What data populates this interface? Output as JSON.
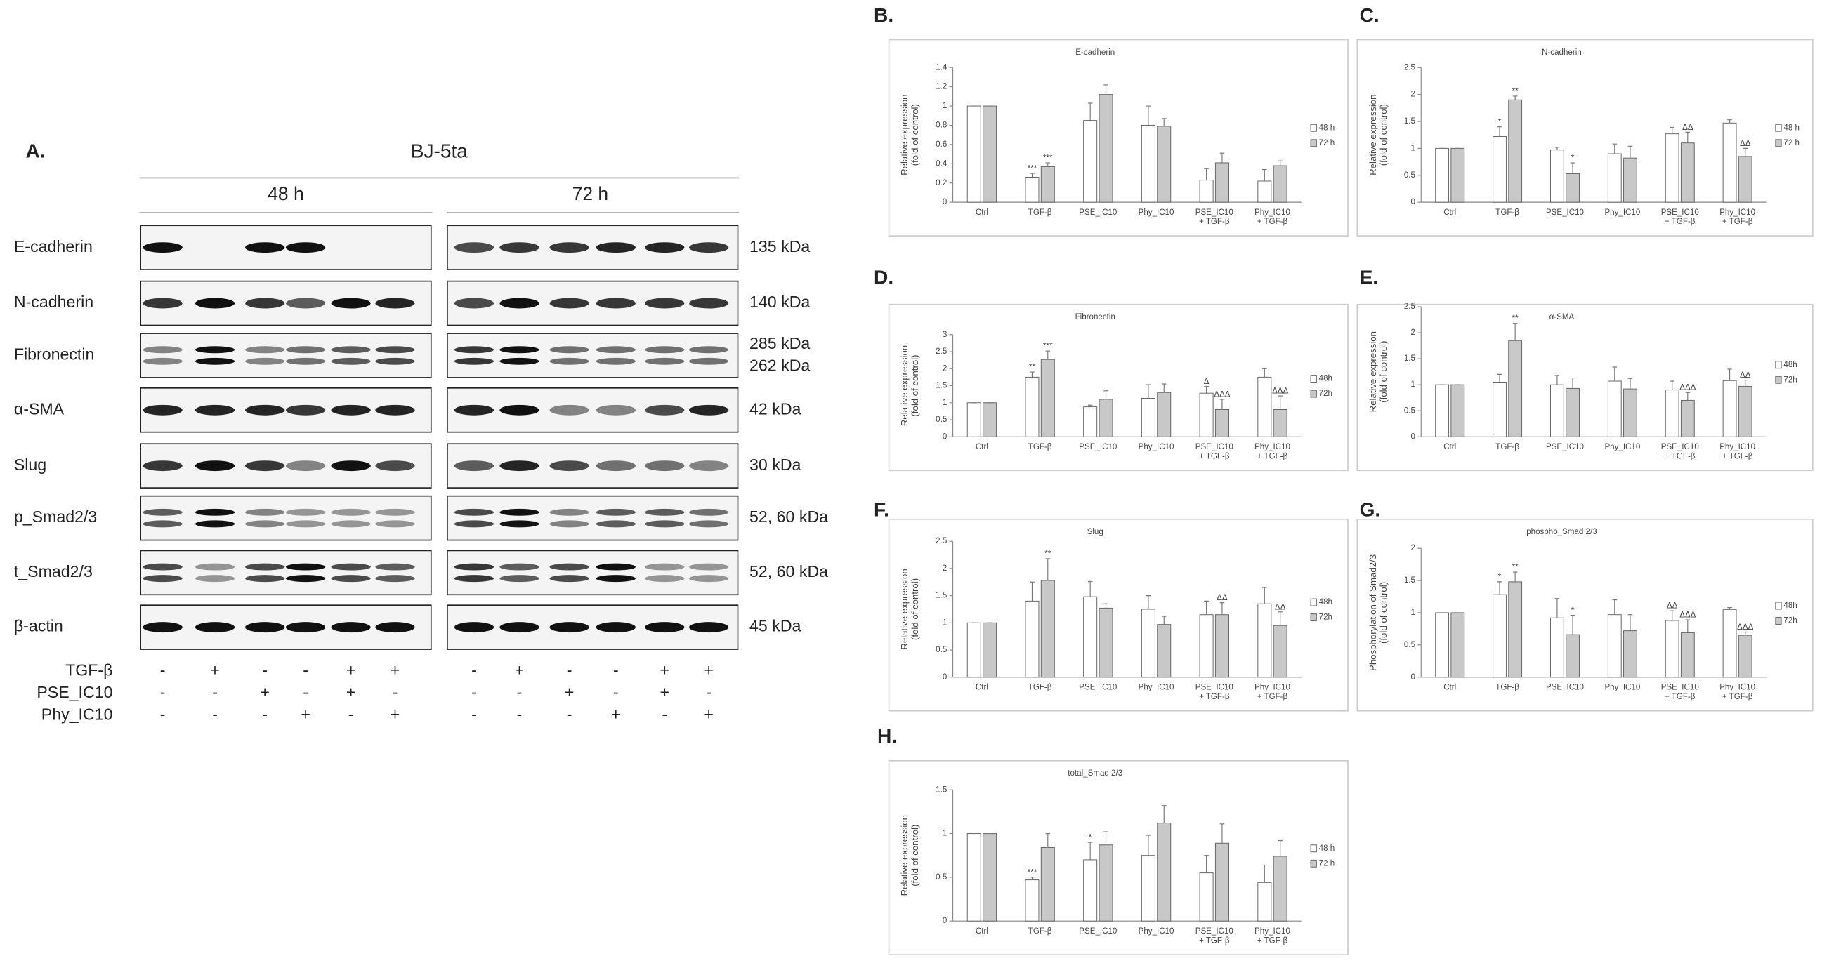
{
  "blot": {
    "panel": "A.",
    "cell_line": "BJ-5ta",
    "timepoints": [
      "48 h",
      "72 h"
    ],
    "rows": [
      {
        "label": "E-cadherin",
        "kda": [
          "135 kDa"
        ]
      },
      {
        "label": "N-cadherin",
        "kda": [
          "140 kDa"
        ]
      },
      {
        "label": "Fibronectin",
        "kda": [
          "285 kDa",
          "262 kDa"
        ]
      },
      {
        "label": "α-SMA",
        "kda": [
          "42 kDa"
        ]
      },
      {
        "label": "Slug",
        "kda": [
          "30 kDa"
        ]
      },
      {
        "label": "p_Smad2/3",
        "kda": [
          "52, 60 kDa"
        ]
      },
      {
        "label": "t_Smad2/3",
        "kda": [
          "52, 60 kDa"
        ]
      },
      {
        "label": "β-actin",
        "kda": [
          "45 kDa"
        ]
      }
    ],
    "treatments": [
      {
        "label": "TGF-β",
        "signs": [
          "-",
          "+",
          "-",
          "-",
          "+",
          "+",
          "-",
          "+",
          "-",
          "-",
          "+",
          "+"
        ]
      },
      {
        "label": "PSE_IC10",
        "signs": [
          "-",
          "-",
          "+",
          "-",
          "+",
          "-",
          "-",
          "-",
          "+",
          "-",
          "+",
          "-"
        ]
      },
      {
        "label": "Phy_IC10",
        "signs": [
          "-",
          "-",
          "-",
          "+",
          "-",
          "+",
          "-",
          "-",
          "-",
          "+",
          "-",
          "+"
        ]
      }
    ]
  },
  "chart_data": [
    {
      "type": "bar",
      "panel": "B.",
      "title": "E-cadherin",
      "ylabel": [
        "Relative expression",
        "(fold of control)"
      ],
      "categories": [
        "Ctrl",
        "TGF-β",
        "PSE_IC10",
        "Phy_IC10",
        "PSE_IC10 + TGF-β",
        "Phy_IC10 + TGF-β"
      ],
      "series": [
        {
          "name": "48 h",
          "color": "#ffffff",
          "values": [
            1,
            0.26,
            0.85,
            0.8,
            0.23,
            0.22
          ],
          "errors": [
            0,
            0.04,
            0.18,
            0.2,
            0.12,
            0.12
          ],
          "marks": [
            null,
            "***",
            null,
            null,
            null,
            null
          ]
        },
        {
          "name": "72 h",
          "color": "#c8c8c8",
          "values": [
            1,
            0.37,
            1.12,
            0.79,
            0.41,
            0.38
          ],
          "errors": [
            0,
            0.04,
            0.1,
            0.08,
            0.1,
            0.05
          ],
          "marks": [
            null,
            "***",
            null,
            null,
            null,
            null
          ]
        }
      ],
      "ylim": [
        0,
        1.4
      ],
      "yticks": [
        0,
        0.2,
        0.4,
        0.6,
        0.8,
        1,
        1.2,
        1.4
      ]
    },
    {
      "type": "bar",
      "panel": "C.",
      "title": "N-cadherin",
      "ylabel": [
        "Relative expression",
        "(fold of control)"
      ],
      "categories": [
        "Ctrl",
        "TGF-β",
        "PSE_IC10",
        "Phy_IC10",
        "PSE_IC10 + TGF-β",
        "Phy_IC10 + TGF-β"
      ],
      "series": [
        {
          "name": "48 h",
          "color": "#ffffff",
          "values": [
            1,
            1.22,
            0.97,
            0.9,
            1.27,
            1.47
          ],
          "errors": [
            0,
            0.18,
            0.05,
            0.18,
            0.12,
            0.06
          ],
          "marks": [
            null,
            "*",
            null,
            null,
            null,
            null
          ]
        },
        {
          "name": "72 h",
          "color": "#c8c8c8",
          "values": [
            1,
            1.9,
            0.53,
            0.82,
            1.1,
            0.85
          ],
          "errors": [
            0,
            0.07,
            0.2,
            0.22,
            0.2,
            0.15
          ],
          "marks": [
            null,
            "**",
            "*",
            null,
            "ΔΔ",
            "ΔΔ"
          ]
        }
      ],
      "ylim": [
        0,
        2.5
      ],
      "yticks": [
        0,
        0.5,
        1,
        1.5,
        2,
        2.5
      ]
    },
    {
      "type": "bar",
      "panel": "D.",
      "title": "Fibronectin",
      "ylabel": [
        "Relative expression",
        "(fold of control)"
      ],
      "categories": [
        "Ctrl",
        "TGF-β",
        "PSE_IC10",
        "Phy_IC10",
        "PSE_IC10 + TGF-β",
        "Phy_IC10 + TGF-β"
      ],
      "series": [
        {
          "name": "48h",
          "color": "#ffffff",
          "values": [
            1,
            1.75,
            0.88,
            1.13,
            1.28,
            1.75
          ],
          "errors": [
            0,
            0.15,
            0.05,
            0.4,
            0.2,
            0.25
          ],
          "marks": [
            null,
            "**",
            null,
            null,
            "Δ",
            null
          ]
        },
        {
          "name": "72h",
          "color": "#c8c8c8",
          "values": [
            1,
            2.27,
            1.1,
            1.3,
            0.8,
            0.8
          ],
          "errors": [
            0,
            0.25,
            0.25,
            0.25,
            0.3,
            0.4
          ],
          "marks": [
            null,
            "***",
            null,
            null,
            "ΔΔΔ",
            "ΔΔΔ"
          ]
        }
      ],
      "ylim": [
        0,
        3
      ],
      "yticks": [
        0,
        0.5,
        1,
        1.5,
        2,
        2.5,
        3
      ]
    },
    {
      "type": "bar",
      "panel": "E.",
      "title": "α-SMA",
      "ylabel": [
        "Relative expression",
        "(fold of control)"
      ],
      "categories": [
        "Ctrl",
        "TGF-β",
        "PSE_IC10",
        "Phy_IC10",
        "PSE_IC10 + TGF-β",
        "Phy_IC10 + TGF-β"
      ],
      "series": [
        {
          "name": "48h",
          "color": "#ffffff",
          "values": [
            1,
            1.05,
            1,
            1.07,
            0.9,
            1.08
          ],
          "errors": [
            0,
            0.15,
            0.18,
            0.27,
            0.17,
            0.22
          ],
          "marks": [
            null,
            null,
            null,
            null,
            null,
            null
          ]
        },
        {
          "name": "72h",
          "color": "#c8c8c8",
          "values": [
            1,
            1.85,
            0.93,
            0.92,
            0.7,
            0.97
          ],
          "errors": [
            0,
            0.33,
            0.2,
            0.2,
            0.15,
            0.12
          ],
          "marks": [
            null,
            "**",
            null,
            null,
            "ΔΔΔ",
            "ΔΔ"
          ]
        }
      ],
      "ylim": [
        0,
        2.5
      ],
      "yticks": [
        0,
        0.5,
        1,
        1.5,
        2,
        2.5
      ]
    },
    {
      "type": "bar",
      "panel": "F.",
      "title": "Slug",
      "ylabel": [
        "Relative expression",
        "(fold of control)"
      ],
      "categories": [
        "Ctrl",
        "TGF-β",
        "PSE_IC10",
        "Phy_IC10",
        "PSE_IC10 + TGF-β",
        "Phy_IC10 + TGF-β"
      ],
      "series": [
        {
          "name": "48h",
          "color": "#ffffff",
          "values": [
            1,
            1.4,
            1.48,
            1.25,
            1.15,
            1.35
          ],
          "errors": [
            0,
            0.35,
            0.28,
            0.25,
            0.25,
            0.3
          ],
          "marks": [
            null,
            null,
            null,
            null,
            null,
            null
          ]
        },
        {
          "name": "72h",
          "color": "#c8c8c8",
          "values": [
            1,
            1.78,
            1.27,
            0.97,
            1.15,
            0.95
          ],
          "errors": [
            0,
            0.4,
            0.08,
            0.15,
            0.22,
            0.25
          ],
          "marks": [
            null,
            "**",
            null,
            null,
            "ΔΔ",
            "ΔΔ"
          ]
        }
      ],
      "ylim": [
        0,
        2.5
      ],
      "yticks": [
        0,
        0.5,
        1,
        1.5,
        2,
        2.5
      ]
    },
    {
      "type": "bar",
      "panel": "G.",
      "title": "phospho_Smad 2/3",
      "ylabel": [
        "Phosphorylation of Smad2/3",
        "(fold of control)"
      ],
      "categories": [
        "Ctrl",
        "TGF-β",
        "PSE_IC10",
        "Phy_IC10",
        "PSE_IC10 + TGF-β",
        "Phy_IC10 + TGF-β"
      ],
      "series": [
        {
          "name": "48h",
          "color": "#ffffff",
          "values": [
            1,
            1.28,
            0.92,
            0.97,
            0.88,
            1.05
          ],
          "errors": [
            0,
            0.2,
            0.3,
            0.23,
            0.15,
            0.03
          ],
          "marks": [
            null,
            "*",
            null,
            null,
            "ΔΔ",
            null
          ]
        },
        {
          "name": "72h",
          "color": "#c8c8c8",
          "values": [
            1,
            1.48,
            0.66,
            0.72,
            0.69,
            0.65
          ],
          "errors": [
            0,
            0.15,
            0.3,
            0.25,
            0.2,
            0.05
          ],
          "marks": [
            null,
            "**",
            "*",
            null,
            "ΔΔΔ",
            "ΔΔΔ"
          ]
        }
      ],
      "ylim": [
        0,
        2
      ],
      "yticks": [
        0,
        0.5,
        1,
        1.5,
        2
      ]
    },
    {
      "type": "bar",
      "panel": "H.",
      "title": "total_Smad 2/3",
      "ylabel": [
        "Relative expression",
        "(fold of control)"
      ],
      "categories": [
        "Ctrl",
        "TGF-β",
        "PSE_IC10",
        "Phy_IC10",
        "PSE_IC10 + TGF-β",
        "Phy_IC10 + TGF-β"
      ],
      "series": [
        {
          "name": "48 h",
          "color": "#ffffff",
          "values": [
            1,
            0.47,
            0.7,
            0.75,
            0.55,
            0.44
          ],
          "errors": [
            0,
            0.03,
            0.2,
            0.23,
            0.2,
            0.2
          ],
          "marks": [
            null,
            "***",
            "*",
            null,
            null,
            null
          ]
        },
        {
          "name": "72 h",
          "color": "#c8c8c8",
          "values": [
            1,
            0.84,
            0.87,
            1.12,
            0.89,
            0.74
          ],
          "errors": [
            0,
            0.16,
            0.15,
            0.2,
            0.22,
            0.18
          ],
          "marks": [
            null,
            null,
            null,
            null,
            null,
            null
          ]
        }
      ],
      "ylim": [
        0,
        1.5
      ],
      "yticks": [
        0,
        0.5,
        1,
        1.5
      ]
    }
  ]
}
